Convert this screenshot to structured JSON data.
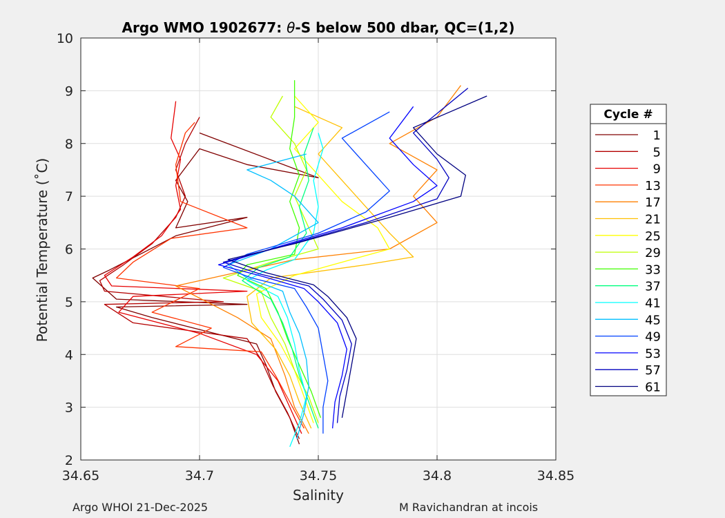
{
  "chart_data": {
    "type": "line",
    "title": "Argo WMO 1902677: θ-S below 500 dbar,  QC=(1,2)",
    "title_prefix": "Argo WMO 1902677: ",
    "title_theta": "θ",
    "title_suffix": "-S below 500 dbar,  QC=(1,2)",
    "xlabel": "Salinity",
    "ylabel": "Potential Temperature (˚C)",
    "xlim": [
      34.65,
      34.85
    ],
    "ylim": [
      2,
      10
    ],
    "xticks": [
      "34.65",
      "34.7",
      "34.75",
      "34.8",
      "34.85"
    ],
    "yticks": [
      "2",
      "3",
      "4",
      "5",
      "6",
      "7",
      "8",
      "9",
      "10"
    ],
    "grid": true,
    "legend_title": "Cycle #",
    "legend_placement": "right",
    "series": [
      {
        "name": "1",
        "color": "#800000",
        "points": [
          [
            34.742,
            2.3
          ],
          [
            34.738,
            2.8
          ],
          [
            34.732,
            3.3
          ],
          [
            34.728,
            3.8
          ],
          [
            34.724,
            4.2
          ],
          [
            34.68,
            4.7
          ],
          [
            34.665,
            4.9
          ],
          [
            34.72,
            4.95
          ],
          [
            34.665,
            5.05
          ],
          [
            34.655,
            5.45
          ],
          [
            34.662,
            5.6
          ],
          [
            34.675,
            5.9
          ],
          [
            34.69,
            6.25
          ],
          [
            34.72,
            6.6
          ],
          [
            34.69,
            6.4
          ],
          [
            34.695,
            6.9
          ],
          [
            34.69,
            7.3
          ],
          [
            34.7,
            7.9
          ],
          [
            34.72,
            7.6
          ],
          [
            34.75,
            7.35
          ],
          [
            34.7,
            8.2
          ]
        ]
      },
      {
        "name": "5",
        "color": "#b30000",
        "points": [
          [
            34.742,
            2.4
          ],
          [
            34.737,
            2.9
          ],
          [
            34.731,
            3.4
          ],
          [
            34.726,
            3.9
          ],
          [
            34.72,
            4.3
          ],
          [
            34.672,
            4.6
          ],
          [
            34.66,
            4.95
          ],
          [
            34.71,
            5.0
          ],
          [
            34.66,
            5.2
          ],
          [
            34.658,
            5.4
          ],
          [
            34.668,
            5.7
          ],
          [
            34.68,
            6.1
          ],
          [
            34.69,
            6.6
          ],
          [
            34.694,
            7.0
          ],
          [
            34.69,
            7.5
          ],
          [
            34.694,
            8.0
          ],
          [
            34.7,
            8.5
          ]
        ]
      },
      {
        "name": "9",
        "color": "#e60000",
        "points": [
          [
            34.743,
            2.5
          ],
          [
            34.738,
            3.0
          ],
          [
            34.733,
            3.5
          ],
          [
            34.724,
            4.0
          ],
          [
            34.7,
            4.4
          ],
          [
            34.666,
            4.8
          ],
          [
            34.672,
            5.1
          ],
          [
            34.72,
            5.2
          ],
          [
            34.663,
            5.3
          ],
          [
            34.66,
            5.5
          ],
          [
            34.672,
            5.85
          ],
          [
            34.684,
            6.25
          ],
          [
            34.692,
            6.75
          ],
          [
            34.69,
            7.2
          ],
          [
            34.692,
            7.7
          ],
          [
            34.688,
            8.1
          ],
          [
            34.69,
            8.8
          ]
        ]
      },
      {
        "name": "13",
        "color": "#ff3300",
        "points": [
          [
            34.744,
            2.6
          ],
          [
            34.738,
            3.1
          ],
          [
            34.732,
            3.6
          ],
          [
            34.726,
            4.05
          ],
          [
            34.69,
            4.15
          ],
          [
            34.705,
            4.5
          ],
          [
            34.68,
            4.8
          ],
          [
            34.7,
            5.25
          ],
          [
            34.665,
            5.45
          ],
          [
            34.672,
            5.75
          ],
          [
            34.688,
            6.2
          ],
          [
            34.72,
            6.4
          ],
          [
            34.692,
            6.9
          ],
          [
            34.69,
            7.6
          ],
          [
            34.694,
            8.2
          ],
          [
            34.698,
            8.4
          ]
        ]
      },
      {
        "name": "17",
        "color": "#ff8000",
        "points": [
          [
            34.746,
            2.5
          ],
          [
            34.74,
            3.0
          ],
          [
            34.736,
            3.6
          ],
          [
            34.73,
            4.3
          ],
          [
            34.716,
            4.7
          ],
          [
            34.69,
            5.3
          ],
          [
            34.72,
            5.6
          ],
          [
            34.74,
            5.8
          ],
          [
            34.78,
            6.0
          ],
          [
            34.8,
            6.5
          ],
          [
            34.79,
            7.0
          ],
          [
            34.8,
            7.5
          ],
          [
            34.78,
            8.0
          ],
          [
            34.8,
            8.5
          ],
          [
            34.81,
            9.1
          ]
        ]
      },
      {
        "name": "21",
        "color": "#ffbf00",
        "points": [
          [
            34.747,
            2.6
          ],
          [
            34.742,
            3.1
          ],
          [
            34.738,
            3.6
          ],
          [
            34.732,
            4.1
          ],
          [
            34.722,
            4.6
          ],
          [
            34.72,
            5.1
          ],
          [
            34.73,
            5.45
          ],
          [
            34.77,
            5.7
          ],
          [
            34.79,
            5.85
          ],
          [
            34.78,
            6.3
          ],
          [
            34.77,
            6.8
          ],
          [
            34.76,
            7.3
          ],
          [
            34.75,
            7.8
          ],
          [
            34.76,
            8.3
          ],
          [
            34.74,
            8.7
          ]
        ]
      },
      {
        "name": "25",
        "color": "#ffff00",
        "points": [
          [
            34.748,
            2.7
          ],
          [
            34.744,
            3.2
          ],
          [
            34.74,
            3.7
          ],
          [
            34.734,
            4.2
          ],
          [
            34.726,
            4.7
          ],
          [
            34.724,
            5.15
          ],
          [
            34.74,
            5.5
          ],
          [
            34.76,
            5.75
          ],
          [
            34.78,
            6.0
          ],
          [
            34.775,
            6.4
          ],
          [
            34.76,
            6.9
          ],
          [
            34.75,
            7.4
          ],
          [
            34.74,
            7.9
          ],
          [
            34.75,
            8.4
          ],
          [
            34.74,
            8.9
          ]
        ]
      },
      {
        "name": "29",
        "color": "#bfff00",
        "points": [
          [
            34.75,
            2.7
          ],
          [
            34.746,
            3.2
          ],
          [
            34.74,
            3.7
          ],
          [
            34.736,
            4.2
          ],
          [
            34.73,
            4.7
          ],
          [
            34.726,
            5.2
          ],
          [
            34.71,
            5.45
          ],
          [
            34.73,
            5.75
          ],
          [
            34.75,
            6.0
          ],
          [
            34.745,
            6.5
          ],
          [
            34.74,
            7.0
          ],
          [
            34.745,
            7.5
          ],
          [
            34.74,
            8.0
          ],
          [
            34.73,
            8.5
          ],
          [
            34.735,
            8.9
          ]
        ]
      },
      {
        "name": "33",
        "color": "#40ff00",
        "points": [
          [
            34.751,
            2.8
          ],
          [
            34.747,
            3.3
          ],
          [
            34.742,
            3.8
          ],
          [
            34.737,
            4.3
          ],
          [
            34.733,
            4.8
          ],
          [
            34.728,
            5.25
          ],
          [
            34.716,
            5.5
          ],
          [
            34.72,
            5.7
          ],
          [
            34.74,
            5.9
          ],
          [
            34.742,
            6.4
          ],
          [
            34.738,
            6.9
          ],
          [
            34.742,
            7.4
          ],
          [
            34.738,
            7.9
          ],
          [
            34.74,
            8.5
          ],
          [
            34.74,
            9.2
          ]
        ]
      },
      {
        "name": "37",
        "color": "#00ff80",
        "points": [
          [
            34.75,
            2.6
          ],
          [
            34.746,
            3.1
          ],
          [
            34.742,
            3.6
          ],
          [
            34.739,
            4.1
          ],
          [
            34.735,
            4.6
          ],
          [
            34.73,
            5.05
          ],
          [
            34.718,
            5.4
          ],
          [
            34.725,
            5.65
          ],
          [
            34.738,
            5.85
          ],
          [
            34.745,
            6.3
          ],
          [
            34.742,
            6.8
          ],
          [
            34.746,
            7.3
          ],
          [
            34.744,
            7.8
          ],
          [
            34.748,
            8.3
          ]
        ]
      },
      {
        "name": "41",
        "color": "#00ffff",
        "points": [
          [
            34.738,
            2.25
          ],
          [
            34.742,
            2.7
          ],
          [
            34.745,
            3.2
          ],
          [
            34.742,
            3.7
          ],
          [
            34.74,
            4.2
          ],
          [
            34.737,
            4.7
          ],
          [
            34.733,
            5.1
          ],
          [
            34.72,
            5.4
          ],
          [
            34.728,
            5.6
          ],
          [
            34.74,
            5.8
          ],
          [
            34.748,
            6.3
          ],
          [
            34.75,
            6.8
          ],
          [
            34.748,
            7.3
          ],
          [
            34.752,
            7.9
          ],
          [
            34.75,
            8.2
          ]
        ]
      },
      {
        "name": "45",
        "color": "#00bfff",
        "points": [
          [
            34.741,
            2.4
          ],
          [
            34.744,
            2.9
          ],
          [
            34.746,
            3.4
          ],
          [
            34.745,
            3.9
          ],
          [
            34.742,
            4.4
          ],
          [
            34.738,
            4.8
          ],
          [
            34.735,
            5.2
          ],
          [
            34.72,
            5.45
          ],
          [
            34.712,
            5.7
          ],
          [
            34.73,
            6.0
          ],
          [
            34.75,
            6.5
          ],
          [
            34.74,
            7.0
          ],
          [
            34.73,
            7.3
          ],
          [
            34.72,
            7.5
          ],
          [
            34.745,
            7.8
          ]
        ]
      },
      {
        "name": "49",
        "color": "#0040ff",
        "points": [
          [
            34.752,
            2.5
          ],
          [
            34.752,
            3.0
          ],
          [
            34.754,
            3.5
          ],
          [
            34.752,
            4.0
          ],
          [
            34.75,
            4.5
          ],
          [
            34.745,
            4.9
          ],
          [
            34.74,
            5.25
          ],
          [
            34.722,
            5.45
          ],
          [
            34.71,
            5.65
          ],
          [
            34.72,
            5.9
          ],
          [
            34.75,
            6.3
          ],
          [
            34.77,
            6.7
          ],
          [
            34.78,
            7.1
          ],
          [
            34.77,
            7.6
          ],
          [
            34.76,
            8.1
          ],
          [
            34.78,
            8.6
          ]
        ]
      },
      {
        "name": "53",
        "color": "#0000ff",
        "points": [
          [
            34.756,
            2.6
          ],
          [
            34.757,
            3.1
          ],
          [
            34.76,
            3.6
          ],
          [
            34.762,
            4.1
          ],
          [
            34.758,
            4.6
          ],
          [
            34.75,
            5.0
          ],
          [
            34.744,
            5.25
          ],
          [
            34.725,
            5.5
          ],
          [
            34.708,
            5.7
          ],
          [
            34.73,
            6.0
          ],
          [
            34.76,
            6.4
          ],
          [
            34.79,
            6.9
          ],
          [
            34.8,
            7.2
          ],
          [
            34.79,
            7.6
          ],
          [
            34.78,
            8.1
          ],
          [
            34.79,
            8.7
          ]
        ]
      },
      {
        "name": "57",
        "color": "#0000bf",
        "points": [
          [
            34.758,
            2.7
          ],
          [
            34.759,
            3.2
          ],
          [
            34.762,
            3.7
          ],
          [
            34.764,
            4.2
          ],
          [
            34.76,
            4.65
          ],
          [
            34.752,
            5.05
          ],
          [
            34.746,
            5.3
          ],
          [
            34.726,
            5.52
          ],
          [
            34.71,
            5.75
          ],
          [
            34.735,
            6.05
          ],
          [
            34.77,
            6.5
          ],
          [
            34.8,
            6.95
          ],
          [
            34.805,
            7.35
          ],
          [
            34.8,
            7.7
          ],
          [
            34.79,
            8.2
          ],
          [
            34.813,
            9.05
          ]
        ]
      },
      {
        "name": "61",
        "color": "#000080",
        "points": [
          [
            34.76,
            2.8
          ],
          [
            34.762,
            3.3
          ],
          [
            34.764,
            3.8
          ],
          [
            34.766,
            4.3
          ],
          [
            34.762,
            4.7
          ],
          [
            34.754,
            5.1
          ],
          [
            34.748,
            5.32
          ],
          [
            34.728,
            5.55
          ],
          [
            34.712,
            5.8
          ],
          [
            34.74,
            6.1
          ],
          [
            34.78,
            6.6
          ],
          [
            34.81,
            7.0
          ],
          [
            34.812,
            7.4
          ],
          [
            34.8,
            7.8
          ],
          [
            34.79,
            8.3
          ],
          [
            34.821,
            8.9
          ]
        ]
      }
    ]
  },
  "footer": {
    "left": "Argo WHOI 21-Dec-2025",
    "right": "M Ravichandran at incois"
  }
}
